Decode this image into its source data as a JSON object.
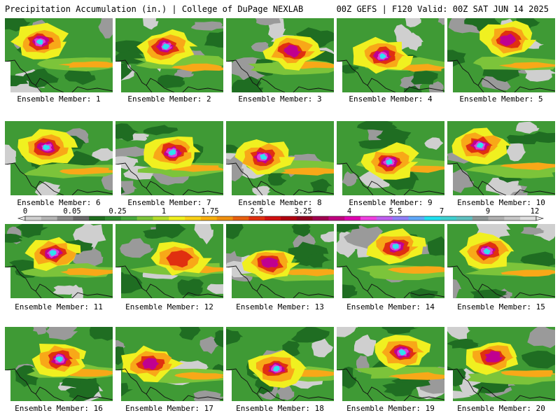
{
  "header": {
    "title_left": "Precipitation Accumulation (in.) | College of DuPage NEXLAB",
    "title_right": "00Z GEFS | F120 Valid: 00Z SAT JUN 14 2025"
  },
  "colorbar": {
    "tick_labels": [
      "0",
      "0.05",
      "0.25",
      "1",
      "1.75",
      "2.5",
      "3.25",
      "4",
      "5.5",
      "7",
      "9",
      "12"
    ],
    "colors": [
      "#d0d0d0",
      "#b4b4b4",
      "#8c8c8c",
      "#6a6a6a",
      "#1e6e1e",
      "#2e8b2e",
      "#48a83c",
      "#7cc43a",
      "#b4dc2c",
      "#f0f020",
      "#f8d018",
      "#f8b010",
      "#f09010",
      "#e86010",
      "#e03010",
      "#d01010",
      "#b00010",
      "#900020",
      "#a00050",
      "#c00080",
      "#e000b0",
      "#f040e0",
      "#c060f0",
      "#9080f8",
      "#60a8f8",
      "#20e0f0",
      "#40d0d0",
      "#60c0c0",
      "#909898",
      "#b0b0b0",
      "#c8c8c8",
      "#e0e0e0"
    ]
  },
  "members": [
    {
      "label": "Ensemble Member: 1",
      "intensity": 3
    },
    {
      "label": "Ensemble Member: 2",
      "intensity": 3
    },
    {
      "label": "Ensemble Member: 3",
      "intensity": 2
    },
    {
      "label": "Ensemble Member: 4",
      "intensity": 3
    },
    {
      "label": "Ensemble Member: 5",
      "intensity": 2
    },
    {
      "label": "Ensemble Member: 6",
      "intensity": 3
    },
    {
      "label": "Ensemble Member: 7",
      "intensity": 3
    },
    {
      "label": "Ensemble Member: 8",
      "intensity": 3
    },
    {
      "label": "Ensemble Member: 9",
      "intensity": 3
    },
    {
      "label": "Ensemble Member: 10",
      "intensity": 3
    },
    {
      "label": "Ensemble Member: 11",
      "intensity": 3
    },
    {
      "label": "Ensemble Member: 12",
      "intensity": 1
    },
    {
      "label": "Ensemble Member: 13",
      "intensity": 2
    },
    {
      "label": "Ensemble Member: 14",
      "intensity": 3
    },
    {
      "label": "Ensemble Member: 15",
      "intensity": 3
    },
    {
      "label": "Ensemble Member: 16",
      "intensity": 3
    },
    {
      "label": "Ensemble Member: 17",
      "intensity": 2
    },
    {
      "label": "Ensemble Member: 18",
      "intensity": 3
    },
    {
      "label": "Ensemble Member: 19",
      "intensity": 3
    },
    {
      "label": "Ensemble Member: 20",
      "intensity": 2
    }
  ]
}
